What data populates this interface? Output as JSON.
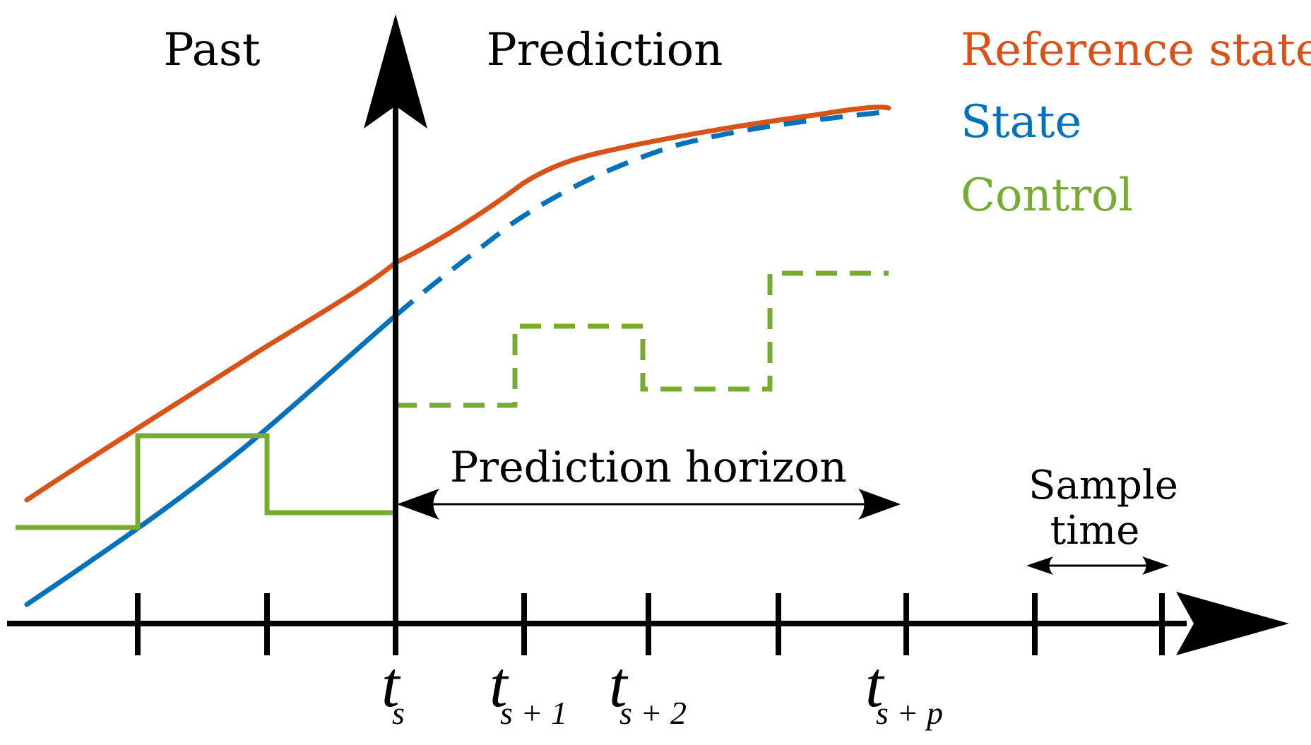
{
  "regions": {
    "past": "Past",
    "prediction": "Prediction"
  },
  "legend": [
    {
      "key": "reference",
      "label": "Reference state",
      "color": "#d95319"
    },
    {
      "key": "state",
      "label": "State",
      "color": "#0072bd"
    },
    {
      "key": "control",
      "label": "Control",
      "color": "#77ac30"
    }
  ],
  "annotations": {
    "prediction_horizon": "Prediction horizon",
    "sample_time_line1": "Sample",
    "sample_time_line2": "time"
  },
  "time_labels": {
    "ts": {
      "base": "t",
      "sub": "s"
    },
    "ts1": {
      "base": "t",
      "sub": "s + 1"
    },
    "ts2": {
      "base": "t",
      "sub": "s + 2"
    },
    "tsp": {
      "base": "t",
      "sub": "s + p"
    }
  },
  "colors": {
    "axis": "#000000",
    "reference": "#d95319",
    "state": "#0072bd",
    "control": "#77ac30"
  }
}
